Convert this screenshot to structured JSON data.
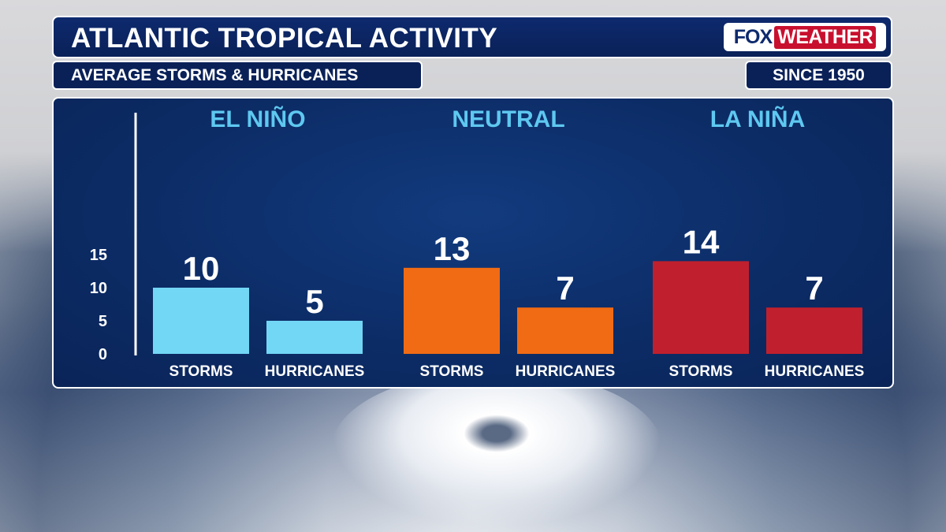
{
  "header": {
    "title": "ATLANTIC TROPICAL ACTIVITY",
    "subtitle": "AVERAGE STORMS & HURRICANES",
    "since": "SINCE 1950",
    "logo_fox": "FOX",
    "logo_weather": "WEATHER"
  },
  "colors": {
    "el_nino": "#72d6f5",
    "neutral": "#f06b14",
    "la_nina": "#c0202d",
    "group_label": "#5ec8f0"
  },
  "chart_data": {
    "type": "bar",
    "title": "ATLANTIC TROPICAL ACTIVITY",
    "subtitle": "AVERAGE STORMS & HURRICANES",
    "ylim": [
      0,
      15
    ],
    "yticks": [
      0,
      5,
      10,
      15
    ],
    "grid": false,
    "groups": [
      {
        "name": "EL NIÑO",
        "color": "#72d6f5",
        "categories": [
          "STORMS",
          "HURRICANES"
        ],
        "values": [
          10,
          5
        ]
      },
      {
        "name": "NEUTRAL",
        "color": "#f06b14",
        "categories": [
          "STORMS",
          "HURRICANES"
        ],
        "values": [
          13,
          7
        ]
      },
      {
        "name": "LA NIÑA",
        "color": "#c0202d",
        "categories": [
          "STORMS",
          "HURRICANES"
        ],
        "values": [
          14,
          7
        ]
      }
    ]
  }
}
